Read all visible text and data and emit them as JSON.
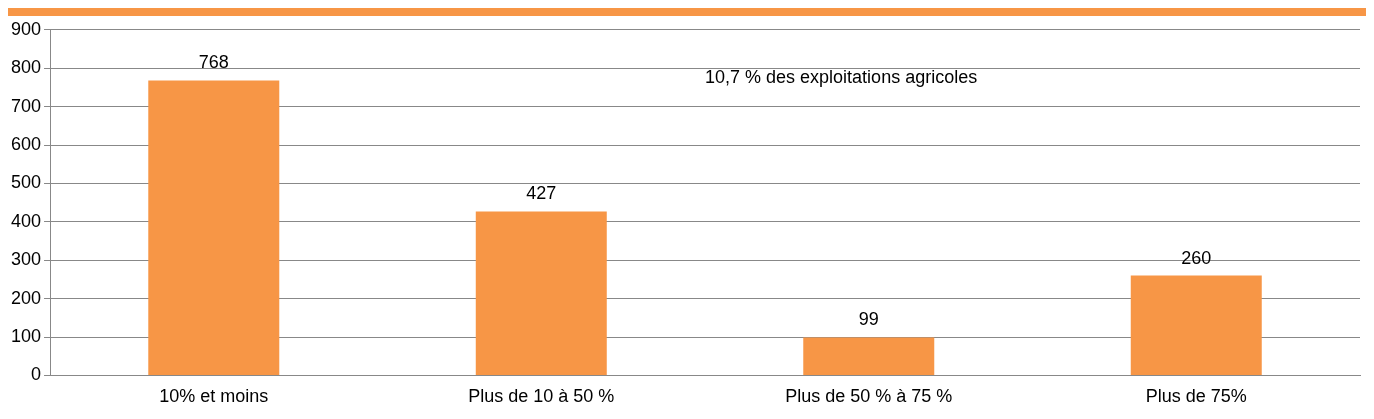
{
  "chart_data": {
    "type": "bar",
    "categories": [
      "10% et moins",
      "Plus de 10 à 50 %",
      "Plus de 50 % à 75 %",
      "Plus de 75%"
    ],
    "values": [
      768,
      427,
      99,
      260
    ],
    "color": "#f79646",
    "ylim": [
      0,
      900
    ],
    "yticks": [
      0,
      100,
      200,
      300,
      400,
      500,
      600,
      700,
      800,
      900
    ],
    "grid": "y",
    "data_labels": true,
    "legend": false,
    "annotations": [
      "10,7 % des exploitations agricoles"
    ]
  }
}
